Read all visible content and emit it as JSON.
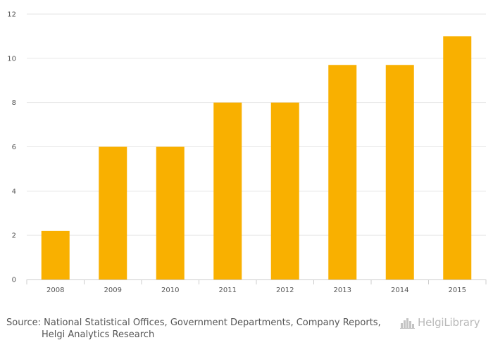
{
  "chart_data": {
    "type": "bar",
    "categories": [
      "2008",
      "2009",
      "2010",
      "2011",
      "2012",
      "2013",
      "2014",
      "2015"
    ],
    "values": [
      2.2,
      6.0,
      6.0,
      8.0,
      8.0,
      9.7,
      9.7,
      11.0
    ],
    "ylim": [
      0,
      12
    ],
    "yticks": [
      "0",
      "2",
      "4",
      "6",
      "8",
      "10",
      "12"
    ],
    "title": "",
    "xlabel": "",
    "ylabel": "",
    "grid": true,
    "bar_color": "#f9b000"
  },
  "footer": {
    "source_line1": "Source: National Statistical Offices, Government Departments, Company Reports,",
    "source_line2": "Helgi Analytics Research",
    "logo_text": "HelgiLibrary"
  },
  "colors": {
    "bar": "#f9b000",
    "grid": "#e6e6e6",
    "axis": "#cccccc",
    "text": "#555555"
  }
}
